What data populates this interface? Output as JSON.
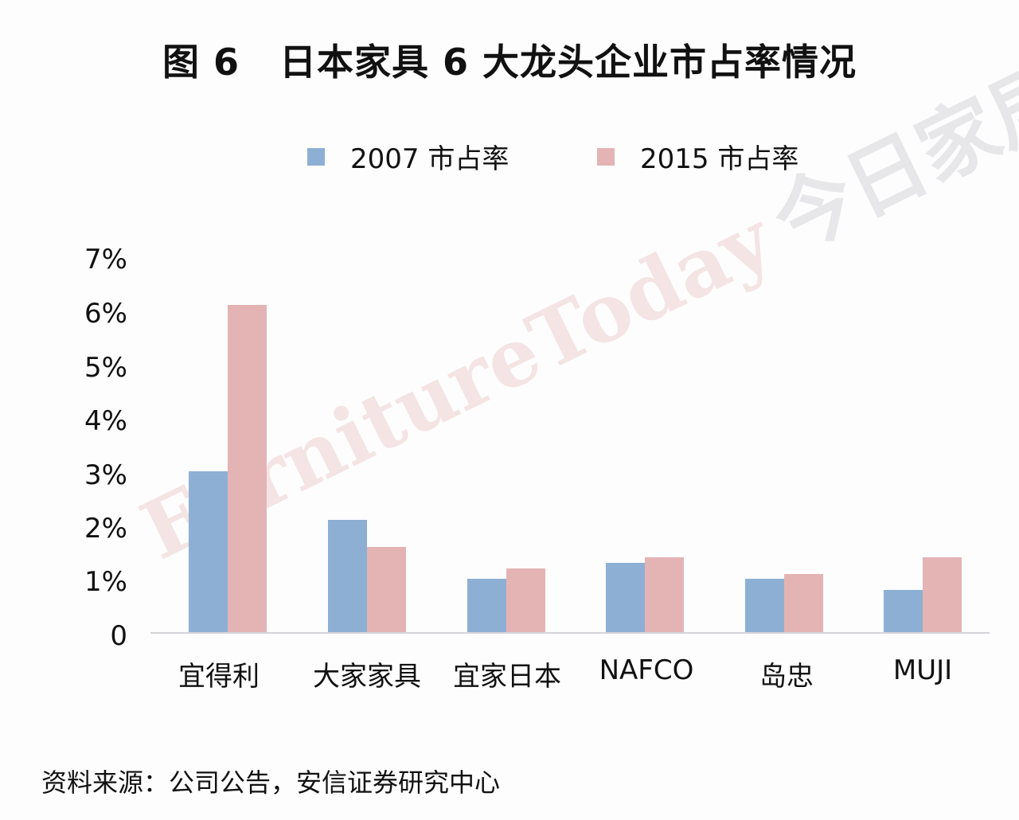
{
  "title": {
    "figure": "图 6",
    "text": "日本家具 6 大龙头企业市占率情况"
  },
  "legend": [
    {
      "label": "2007 市占率",
      "color": "#8DAFD4"
    },
    {
      "label": "2015 市占率",
      "color": "#E4B4B4"
    }
  ],
  "y_ticks": [
    "0",
    "1%",
    "2%",
    "3%",
    "4%",
    "5%",
    "6%",
    "7%"
  ],
  "categories": [
    "宜得利",
    "大家家具",
    "宜家日本",
    "NAFCO",
    "岛忠",
    "MUJI"
  ],
  "source": "资料来源：公司公告，安信证券研究中心",
  "watermark": {
    "en": "FurnitureToday",
    "cn": "今日家居"
  },
  "chart_data": {
    "type": "bar",
    "title": "日本家具 6 大龙头企业市占率情况",
    "categories": [
      "宜得利",
      "大家家具",
      "宜家日本",
      "NAFCO",
      "岛忠",
      "MUJI"
    ],
    "series": [
      {
        "name": "2007 市占率",
        "color": "#8DAFD4",
        "values": [
          3.0,
          2.1,
          1.0,
          1.3,
          1.0,
          0.8
        ]
      },
      {
        "name": "2015 市占率",
        "color": "#E4B4B4",
        "values": [
          6.1,
          1.6,
          1.2,
          1.4,
          1.1,
          1.4
        ]
      }
    ],
    "xlabel": "",
    "ylabel": "",
    "ylim": [
      0,
      7
    ],
    "y_unit": "%",
    "grid": false,
    "legend_position": "top"
  }
}
